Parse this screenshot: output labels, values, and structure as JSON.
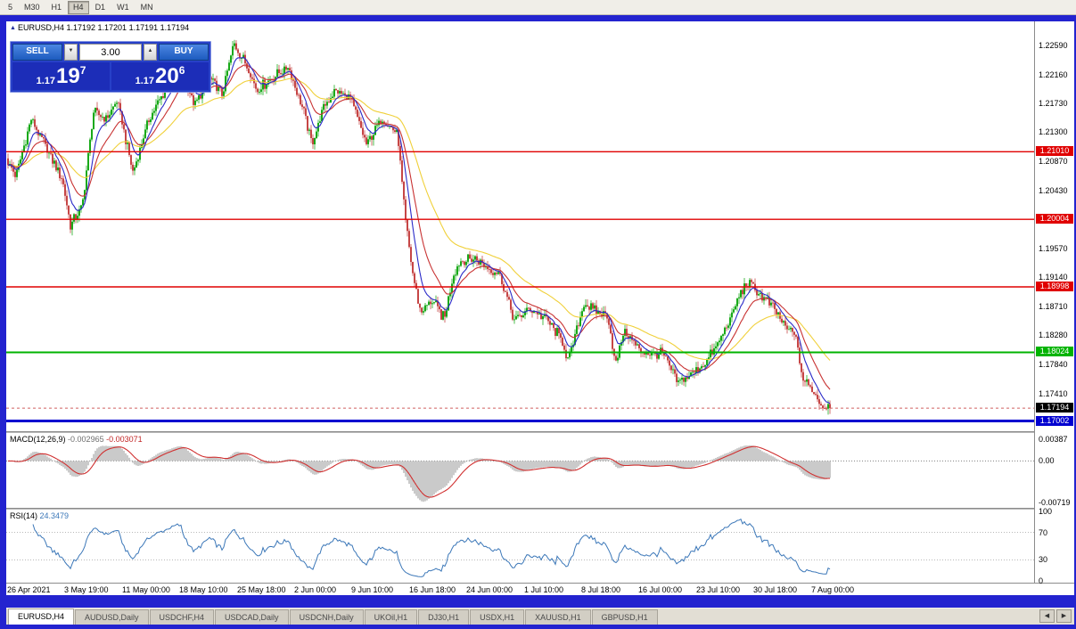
{
  "toolbar": {
    "periods": [
      {
        "label": "5",
        "active": false
      },
      {
        "label": "M30",
        "active": false
      },
      {
        "label": "H1",
        "active": false
      },
      {
        "label": "H4",
        "active": true
      },
      {
        "label": "D1",
        "active": false
      },
      {
        "label": "W1",
        "active": false
      },
      {
        "label": "MN",
        "active": false
      }
    ]
  },
  "chart_header": {
    "symbol": "EURUSD,H4",
    "open": "1.17192",
    "high": "1.17201",
    "low": "1.17191",
    "close": "1.17194"
  },
  "trade_panel": {
    "sell_label": "SELL",
    "buy_label": "BUY",
    "volume": "3.00",
    "sell_price_prefix": "1.17",
    "sell_price_big": "19",
    "sell_price_sup": "7",
    "buy_price_prefix": "1.17",
    "buy_price_big": "20",
    "buy_price_sup": "6"
  },
  "macd_panel": {
    "name": "MACD(12,26,9)",
    "value": "-0.002965",
    "signal_value": "-0.003071"
  },
  "rsi_panel": {
    "name": "RSI(14)",
    "value": "24.3479"
  },
  "tabs": [
    {
      "label": "EURUSD,H4",
      "active": true
    },
    {
      "label": "AUDUSD,Daily",
      "active": false
    },
    {
      "label": "USDCHF,H4",
      "active": false
    },
    {
      "label": "USDCAD,Daily",
      "active": false
    },
    {
      "label": "USDCNH,Daily",
      "active": false
    },
    {
      "label": "UKOil,H1",
      "active": false
    },
    {
      "label": "DJ30,H1",
      "active": false
    },
    {
      "label": "USDX,H1",
      "active": false
    },
    {
      "label": "XAUUSD,H1",
      "active": false
    },
    {
      "label": "GBPUSD,H1",
      "active": false
    }
  ],
  "tab_scroll": {
    "left": "◀",
    "right": "▶"
  },
  "chart_data": {
    "type": "candlestick",
    "symbol": "EURUSD",
    "timeframe": "H4",
    "n_candles": 462,
    "ylim": [
      1.1685,
      1.2295
    ],
    "current_price": 1.17194,
    "current_price_label": "1.17194",
    "y_ticks": [
      1.2259,
      1.2216,
      1.2173,
      1.213,
      1.2087,
      1.2043,
      1.1957,
      1.1914,
      1.1871,
      1.1828,
      1.1784,
      1.1741
    ],
    "hlines": [
      {
        "price": 1.2101,
        "label": "1.21010",
        "color": "#e00000",
        "lw": 1.4
      },
      {
        "price": 1.20004,
        "label": "1.20004",
        "color": "#e00000",
        "lw": 1.4
      },
      {
        "price": 1.18998,
        "label": "1.18998",
        "color": "#e00000",
        "lw": 1.4
      },
      {
        "price": 1.18024,
        "label": "1.18024",
        "color": "#00b300",
        "lw": 2
      },
      {
        "price": 1.17002,
        "label": "1.17002",
        "color": "#0000d0",
        "lw": 3
      }
    ],
    "time_labels": [
      "26 Apr 2021",
      "3 May 19:00",
      "11 May 00:00",
      "18 May 10:00",
      "25 May 18:00",
      "2 Jun 00:00",
      "9 Jun 10:00",
      "16 Jun 18:00",
      "24 Jun 00:00",
      "1 Jul 10:00",
      "8 Jul 18:00",
      "16 Jul 00:00",
      "23 Jul 10:00",
      "30 Jul 18:00",
      "7 Aug 00:00"
    ],
    "close_waypoints": [
      [
        0.0,
        1.2085
      ],
      [
        0.01,
        1.2065
      ],
      [
        0.028,
        1.215
      ],
      [
        0.045,
        1.211
      ],
      [
        0.066,
        1.206
      ],
      [
        0.076,
        1.1992
      ],
      [
        0.09,
        1.2018
      ],
      [
        0.104,
        1.216
      ],
      [
        0.12,
        1.215
      ],
      [
        0.133,
        1.2178
      ],
      [
        0.152,
        1.207
      ],
      [
        0.171,
        1.2148
      ],
      [
        0.19,
        1.219
      ],
      [
        0.209,
        1.2232
      ],
      [
        0.227,
        1.217
      ],
      [
        0.245,
        1.221
      ],
      [
        0.26,
        1.2185
      ],
      [
        0.275,
        1.2262
      ],
      [
        0.29,
        1.223
      ],
      [
        0.303,
        1.2192
      ],
      [
        0.32,
        1.221
      ],
      [
        0.341,
        1.2228
      ],
      [
        0.36,
        1.216
      ],
      [
        0.37,
        1.2112
      ],
      [
        0.385,
        1.217
      ],
      [
        0.398,
        1.2192
      ],
      [
        0.417,
        1.218
      ],
      [
        0.436,
        1.2112
      ],
      [
        0.455,
        1.215
      ],
      [
        0.474,
        1.2128
      ],
      [
        0.483,
        1.2002
      ],
      [
        0.493,
        1.1915
      ],
      [
        0.502,
        1.1862
      ],
      [
        0.516,
        1.188
      ],
      [
        0.531,
        1.1852
      ],
      [
        0.542,
        1.192
      ],
      [
        0.55,
        1.1938
      ],
      [
        0.569,
        1.1942
      ],
      [
        0.583,
        1.1928
      ],
      [
        0.597,
        1.1922
      ],
      [
        0.616,
        1.185
      ],
      [
        0.635,
        1.1868
      ],
      [
        0.655,
        1.1852
      ],
      [
        0.673,
        1.1822
      ],
      [
        0.682,
        1.179
      ],
      [
        0.701,
        1.1876
      ],
      [
        0.715,
        1.1862
      ],
      [
        0.73,
        1.1858
      ],
      [
        0.739,
        1.1782
      ],
      [
        0.749,
        1.1836
      ],
      [
        0.768,
        1.1806
      ],
      [
        0.785,
        1.1798
      ],
      [
        0.796,
        1.1802
      ],
      [
        0.815,
        1.1756
      ],
      [
        0.834,
        1.1772
      ],
      [
        0.85,
        1.179
      ],
      [
        0.862,
        1.1812
      ],
      [
        0.878,
        1.185
      ],
      [
        0.891,
        1.1892
      ],
      [
        0.9,
        1.1906
      ],
      [
        0.915,
        1.1888
      ],
      [
        0.929,
        1.1872
      ],
      [
        0.948,
        1.1836
      ],
      [
        0.957,
        1.1832
      ],
      [
        0.967,
        1.1762
      ],
      [
        0.98,
        1.1744
      ],
      [
        0.99,
        1.1722
      ],
      [
        1.0,
        1.17194
      ]
    ],
    "moving_averages": [
      {
        "period": 8,
        "color": "#2a2ac8"
      },
      {
        "period": 18,
        "color": "#c83232"
      },
      {
        "period": 48,
        "color": "#f0d03a"
      }
    ],
    "macd": {
      "params": [
        12,
        26,
        9
      ],
      "axis": [
        {
          "v": 0.003873,
          "label": "0.00387"
        },
        {
          "v": 0,
          "label": "0.00"
        },
        {
          "v": -0.00719,
          "label": "-0.00719"
        }
      ],
      "histogram_color": "#bdbdbd",
      "signal_color": "#d03030"
    },
    "rsi": {
      "period": 14,
      "levels": [
        30,
        70
      ],
      "axis": [
        {
          "v": 100,
          "label": "100"
        },
        {
          "v": 70,
          "label": "70"
        },
        {
          "v": 30,
          "label": "30"
        },
        {
          "v": 0,
          "label": "0"
        }
      ],
      "line_color": "#3b77b8",
      "current": 24.3479
    },
    "colors": {
      "candle_up": "#00a000",
      "candle_down": "#c03232",
      "background": "#ffffff",
      "current_dash": "#d06060"
    }
  }
}
